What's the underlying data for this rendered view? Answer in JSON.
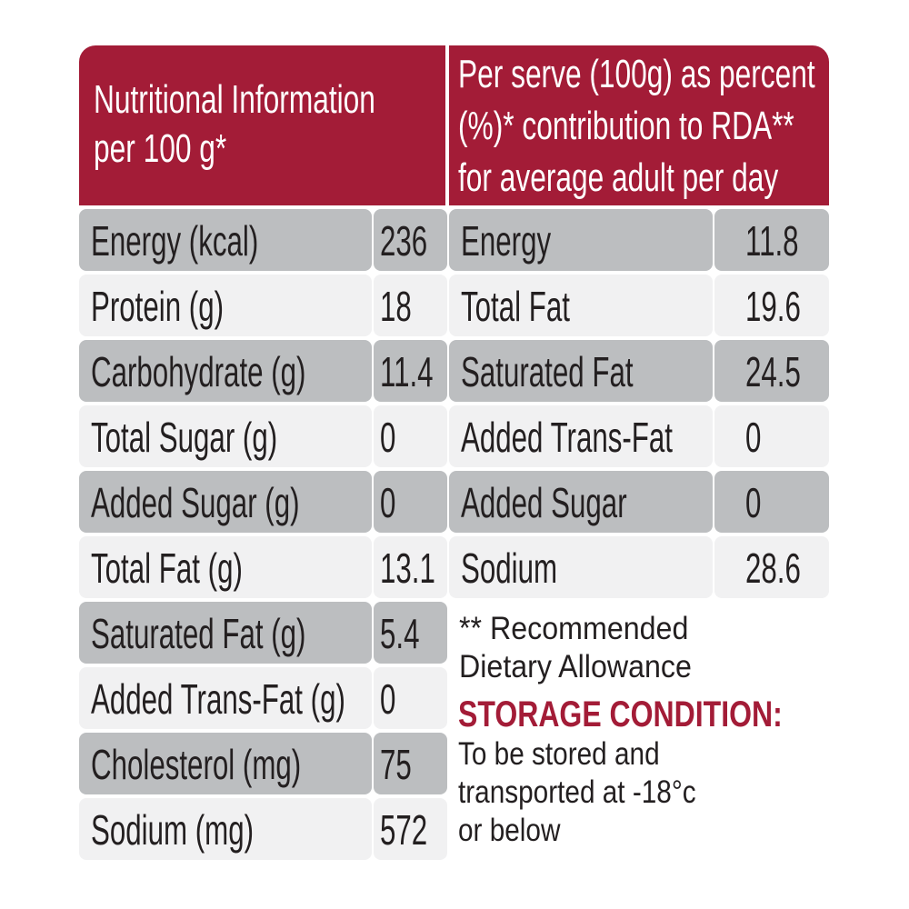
{
  "header": {
    "left": [
      "Nutritional Information",
      "per 100 g*"
    ],
    "right": [
      "Per serve (100g) as percent",
      "(%)* contribution to RDA**",
      "for average adult per day"
    ]
  },
  "left_table": {
    "rows": [
      [
        "Energy (kcal)",
        "236"
      ],
      [
        "Protein (g)",
        "18"
      ],
      [
        "Carbohydrate (g)",
        "11.4"
      ],
      [
        "Total Sugar (g)",
        "0"
      ],
      [
        "Added Sugar (g)",
        "0"
      ],
      [
        "Total Fat (g)",
        "13.1"
      ],
      [
        "Saturated Fat (g)",
        "5.4"
      ],
      [
        "Added Trans-Fat (g)",
        "0"
      ],
      [
        "Cholesterol (mg)",
        "75"
      ],
      [
        "Sodium (mg)",
        "572"
      ]
    ]
  },
  "right_table": {
    "rows": [
      [
        "Energy",
        "11.8"
      ],
      [
        "Total Fat",
        "19.6"
      ],
      [
        "Saturated Fat",
        "24.5"
      ],
      [
        "Added Trans-Fat",
        "0"
      ],
      [
        "Added Sugar",
        "0"
      ],
      [
        "Sodium",
        "28.6"
      ]
    ]
  },
  "notes": {
    "rda": [
      "** Recommended",
      "Dietary Allowance"
    ],
    "storage_title": "STORAGE CONDITION:",
    "storage_text": [
      "To be stored and",
      "transported at -18°c",
      "or below"
    ]
  }
}
